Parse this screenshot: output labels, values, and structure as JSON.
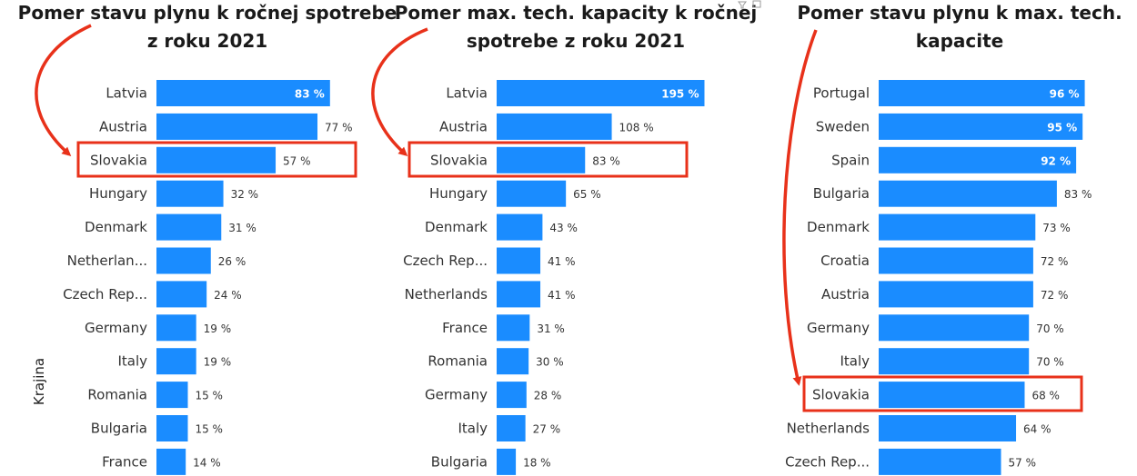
{
  "colors": {
    "bar": "#1a8cff",
    "highlight": "#e8311a",
    "arrow": "#e8311a"
  },
  "y_axis_label": "Krajina",
  "chart_data": [
    {
      "type": "bar",
      "orientation": "horizontal",
      "title_lines": [
        "Pomer stavu plynu k ročnej spotrebe",
        "z roku 2021"
      ],
      "categories": [
        "Latvia",
        "Austria",
        "Slovakia",
        "Hungary",
        "Denmark",
        "Netherlan...",
        "Czech Rep...",
        "Germany",
        "Italy",
        "Romania",
        "Bulgaria",
        "France"
      ],
      "values": [
        83,
        77,
        57,
        32,
        31,
        26,
        24,
        19,
        19,
        15,
        15,
        14
      ],
      "labels": [
        "83 %",
        "77 %",
        "57 %",
        "32 %",
        "31 %",
        "26 %",
        "24 %",
        "19 %",
        "19 %",
        "15 %",
        "15 %",
        "14 %"
      ],
      "unit": "%",
      "xmax": 87,
      "highlight": "Slovakia",
      "ylabel": "Krajina"
    },
    {
      "type": "bar",
      "orientation": "horizontal",
      "title_lines": [
        "Pomer max. tech. kapacity k ročnej",
        "spotrebe z roku 2021"
      ],
      "categories": [
        "Latvia",
        "Austria",
        "Slovakia",
        "Hungary",
        "Denmark",
        "Czech Rep...",
        "Netherlands",
        "France",
        "Romania",
        "Germany",
        "Italy",
        "Bulgaria"
      ],
      "values": [
        195,
        108,
        83,
        65,
        43,
        41,
        41,
        31,
        30,
        28,
        27,
        18
      ],
      "labels": [
        "195 %",
        "108 %",
        "83 %",
        "65 %",
        "43 %",
        "41 %",
        "41 %",
        "31 %",
        "30 %",
        "28 %",
        "27 %",
        "18 %"
      ],
      "unit": "%",
      "xmax": 198,
      "highlight": "Slovakia"
    },
    {
      "type": "bar",
      "orientation": "horizontal",
      "title_lines": [
        "Pomer stavu plynu k max. tech.",
        "kapacite"
      ],
      "categories": [
        "Portugal",
        "Sweden",
        "Spain",
        "Bulgaria",
        "Denmark",
        "Croatia",
        "Austria",
        "Germany",
        "Italy",
        "Slovakia",
        "Netherlands",
        "Czech Rep..."
      ],
      "values": [
        96,
        95,
        92,
        83,
        73,
        72,
        72,
        70,
        70,
        68,
        64,
        57
      ],
      "labels": [
        "96 %",
        "95 %",
        "92 %",
        "83 %",
        "73 %",
        "72 %",
        "72 %",
        "70 %",
        "70 %",
        "68 %",
        "64 %",
        "57 %"
      ],
      "unit": "%",
      "xmax": 100,
      "highlight": "Slovakia"
    }
  ]
}
